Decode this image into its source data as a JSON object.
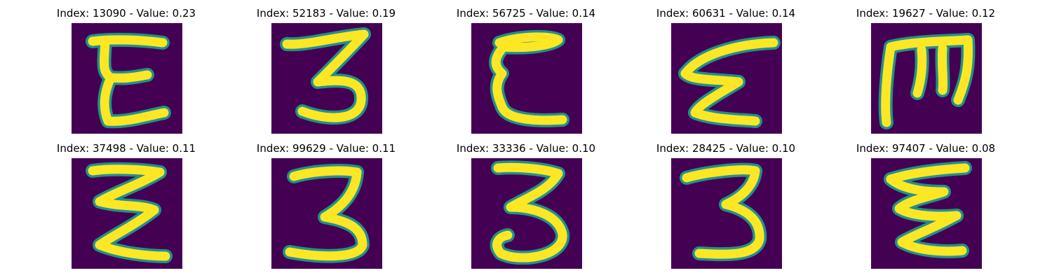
{
  "colors": {
    "background": "#440154",
    "stroke_mid": "#21918c",
    "stroke_high": "#fde725"
  },
  "panels": [
    {
      "index": 13090,
      "value": "0.23",
      "title": "Index: 13090 - Value: 0.23",
      "glyph": "E-blocky"
    },
    {
      "index": 52183,
      "value": "0.19",
      "title": "Index: 52183 - Value: 0.19",
      "glyph": "3"
    },
    {
      "index": 56725,
      "value": "0.14",
      "title": "Index: 56725 - Value: 0.14",
      "glyph": "E-curved"
    },
    {
      "index": 60631,
      "value": "0.14",
      "title": "Index: 60631 - Value: 0.14",
      "glyph": "E-zigzag"
    },
    {
      "index": 19627,
      "value": "0.12",
      "title": "Index: 19627 - Value: 0.12",
      "glyph": "M-rotated"
    },
    {
      "index": 37498,
      "value": "0.11",
      "title": "Index: 37498 - Value: 0.11",
      "glyph": "E-zigzag-bold"
    },
    {
      "index": 99629,
      "value": "0.11",
      "title": "Index: 99629 - Value: 0.11",
      "glyph": "3-tall"
    },
    {
      "index": 33336,
      "value": "0.10",
      "title": "Index: 33336 - Value: 0.10",
      "glyph": "3-loop"
    },
    {
      "index": 28425,
      "value": "0.10",
      "title": "Index: 28425 - Value: 0.10",
      "glyph": "3-block"
    },
    {
      "index": 97407,
      "value": "0.08",
      "title": "Index: 97407 - Value: 0.08",
      "glyph": "E-zigzag-thin"
    }
  ]
}
